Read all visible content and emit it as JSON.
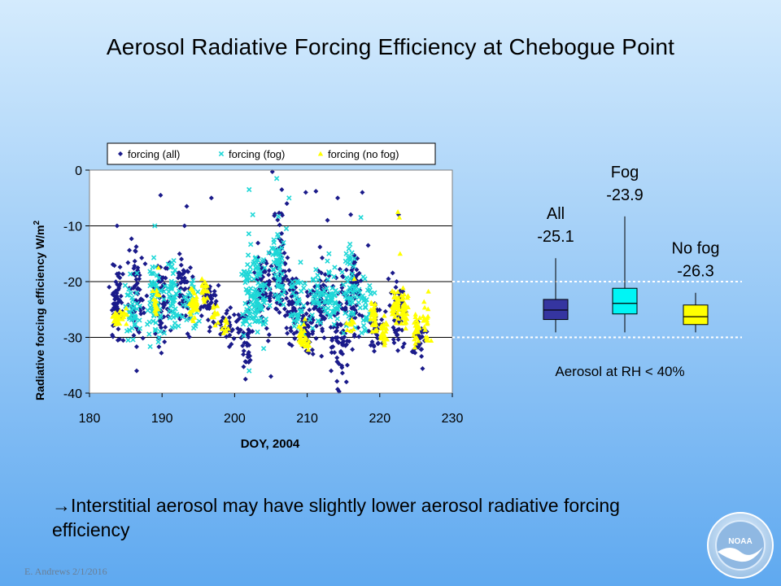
{
  "slide": {
    "title": "Aerosol Radiative Forcing Efficiency at Chebogue Point",
    "bullet_arrow": "→",
    "bullet_text": "Interstitial aerosol may have slightly lower aerosol radiative forcing efficiency",
    "footer": "E. Andrews   2/1/2016",
    "logo_text": "NOAA"
  },
  "chart_data": [
    {
      "type": "scatter",
      "title": "",
      "xlabel": "DOY, 2004",
      "ylabel": "Radiative forcing efficiency W/m",
      "ylabel_sup": "2",
      "xlim": [
        180,
        230
      ],
      "ylim": [
        -40,
        0
      ],
      "xticks": [
        180,
        190,
        200,
        210,
        220,
        230
      ],
      "yticks": [
        0,
        -10,
        -20,
        -30,
        -40
      ],
      "grid": "horizontal",
      "legend_position": "top",
      "series": [
        {
          "name": "forcing (all)",
          "marker": "diamond",
          "color": "#1a1a8a",
          "clusters": [
            [
              183.7,
              -24,
              5.5,
              60
            ],
            [
              186.5,
              -22,
              7,
              60
            ],
            [
              190,
              -23,
              6,
              60
            ],
            [
              193,
              -21,
              6,
              50
            ],
            [
              196.5,
              -24,
              4,
              40
            ],
            [
              199,
              -28,
              3,
              30
            ],
            [
              201.5,
              -30,
              5,
              40
            ],
            [
              204,
              -22,
              6,
              70
            ],
            [
              206.2,
              -18,
              8,
              70
            ],
            [
              208,
              -25,
              6,
              50
            ],
            [
              210,
              -28,
              5,
              50
            ],
            [
              212,
              -24,
              7,
              60
            ],
            [
              214.5,
              -28,
              8,
              70
            ],
            [
              216.5,
              -22,
              7,
              60
            ],
            [
              219.5,
              -28,
              4,
              40
            ],
            [
              222.5,
              -26,
              6,
              50
            ],
            [
              225.5,
              -30,
              3,
              30
            ]
          ],
          "outliers": [
            [
              183.8,
              -10
            ],
            [
              189.8,
              -4.5
            ],
            [
              193.4,
              -6.5
            ],
            [
              193.1,
              -10
            ],
            [
              196.8,
              -5
            ],
            [
              205.2,
              -0.3
            ],
            [
              206.5,
              -3.5
            ],
            [
              207.2,
              -6
            ],
            [
              209.8,
              -4
            ],
            [
              211.2,
              -3.8
            ],
            [
              212.8,
              -9
            ],
            [
              214.2,
              -5
            ],
            [
              216,
              -8
            ],
            [
              217.6,
              -4
            ],
            [
              218.4,
              -13.5
            ],
            [
              222.6,
              -8
            ],
            [
              201.5,
              -37.5
            ],
            [
              205,
              -37
            ],
            [
              210.8,
              -33
            ],
            [
              213.3,
              -36
            ],
            [
              214.2,
              -39.3
            ],
            [
              215.4,
              -38
            ],
            [
              225.9,
              -35.6
            ],
            [
              186.5,
              -36
            ]
          ]
        },
        {
          "name": "forcing (fog)",
          "marker": "x",
          "color": "#1ed7d7",
          "clusters": [
            [
              186,
              -25,
              5,
              40
            ],
            [
              189,
              -24,
              6,
              60
            ],
            [
              191.5,
              -23,
              5,
              50
            ],
            [
              194,
              -24,
              4,
              30
            ],
            [
              202,
              -20,
              7,
              60
            ],
            [
              203.5,
              -22,
              6,
              60
            ],
            [
              206,
              -18,
              7,
              60
            ],
            [
              208.5,
              -24,
              5,
              40
            ],
            [
              211.5,
              -22,
              5,
              40
            ],
            [
              213.5,
              -24,
              5,
              40
            ],
            [
              216,
              -21,
              6,
              50
            ],
            [
              218,
              -24,
              4,
              30
            ]
          ],
          "outliers": [
            [
              202,
              -3.5
            ],
            [
              202.5,
              -8
            ],
            [
              205.8,
              -1.5
            ],
            [
              207.5,
              -5
            ],
            [
              217.4,
              -8.5
            ],
            [
              189,
              -10
            ],
            [
              213,
              -15
            ],
            [
              202,
              -36
            ],
            [
              204,
              -32
            ]
          ]
        },
        {
          "name": "forcing (no fog)",
          "marker": "triangle",
          "color": "#ffff00",
          "clusters": [
            [
              183.8,
              -27,
              1.5,
              25
            ],
            [
              184.7,
              -26,
              1.3,
              12
            ],
            [
              189.2,
              -24,
              2.5,
              18
            ],
            [
              194.4,
              -24,
              2.5,
              35
            ],
            [
              195.8,
              -22,
              2,
              18
            ],
            [
              197.3,
              -26,
              2,
              12
            ],
            [
              198.8,
              -27.5,
              1.5,
              10
            ],
            [
              209.2,
              -29.5,
              2,
              22
            ],
            [
              209.9,
              -31,
              2,
              14
            ],
            [
              216,
              -28,
              1.5,
              10
            ],
            [
              219.2,
              -26.5,
              3,
              30
            ],
            [
              220.6,
              -28.5,
              2.5,
              25
            ],
            [
              222.2,
              -24,
              3,
              40
            ],
            [
              223.4,
              -25.5,
              3,
              40
            ],
            [
              225.2,
              -28.5,
              2.5,
              25
            ],
            [
              226.4,
              -27,
              3.5,
              20
            ]
          ],
          "outliers": [
            [
              222.5,
              -7.5
            ],
            [
              222.7,
              -8.5
            ],
            [
              222.8,
              -15
            ],
            [
              189.5,
              -17.5
            ],
            [
              195.5,
              -19.5
            ],
            [
              216.5,
              -19.5
            ]
          ]
        }
      ]
    },
    {
      "type": "box",
      "title": "",
      "ylim": [
        -40,
        0
      ],
      "reference_lines": [
        -20,
        -30
      ],
      "note": "Aerosol at RH < 40%",
      "boxes": [
        {
          "label": "All",
          "value_label": "-25.1",
          "median": -25.1,
          "q1": -26.8,
          "q3": -23.2,
          "whisker_low": -29.1,
          "whisker_high": -15.8,
          "color": "#3535a0"
        },
        {
          "label": "Fog",
          "value_label": "-23.9",
          "median": -23.9,
          "q1": -25.8,
          "q3": -21.2,
          "whisker_low": -29.1,
          "whisker_high": -8.3,
          "color": "#00f5f5"
        },
        {
          "label": "No fog",
          "value_label": "-26.3",
          "median": -26.3,
          "q1": -27.7,
          "q3": -24.2,
          "whisker_low": -29.1,
          "whisker_high": -22.0,
          "color": "#ffff00"
        }
      ]
    }
  ]
}
